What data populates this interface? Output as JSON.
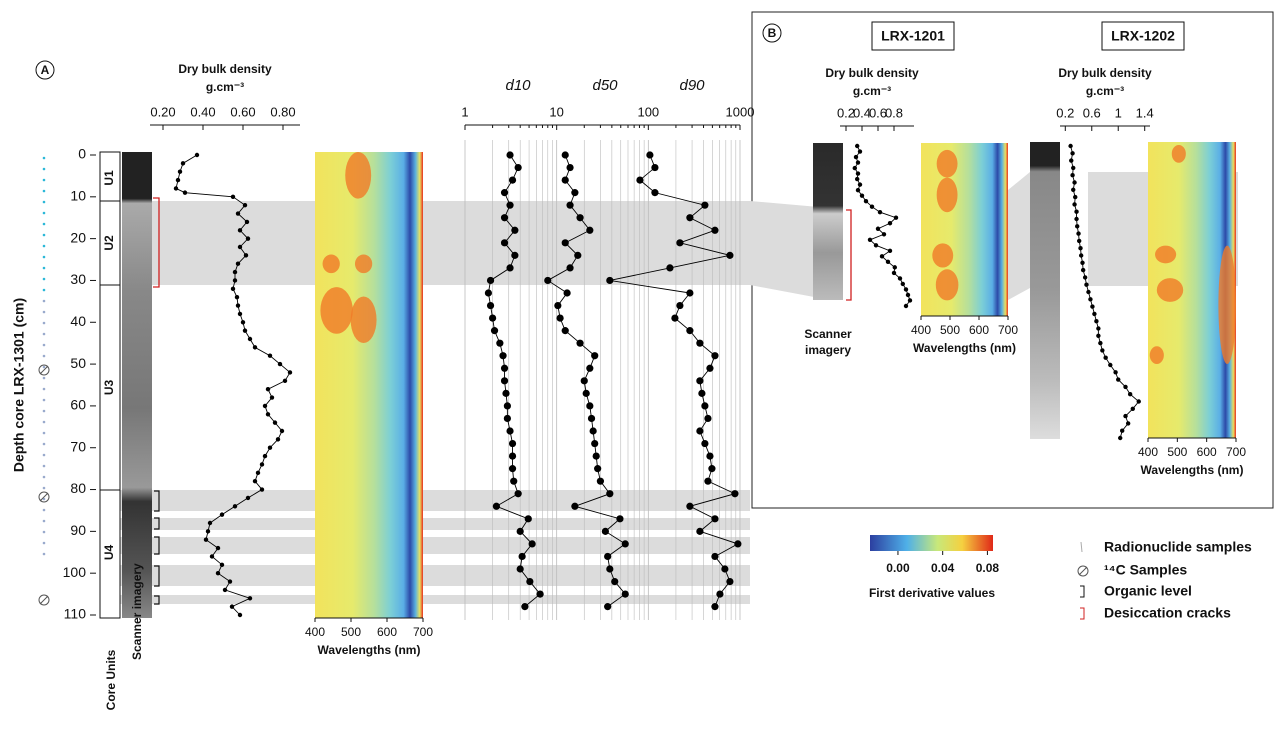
{
  "figure": {
    "panel_a": "A",
    "panel_b": "B",
    "core_1201": "LRX-1201",
    "core_1202": "LRX-1202",
    "core_units": "Core Units",
    "scanner_imagery": "Scanner imagery",
    "units": [
      "U1",
      "U2",
      "U3",
      "U4"
    ],
    "inset_scanner": [
      "Scanner",
      "imagery"
    ]
  },
  "colorbar": {
    "label": "First derivative values",
    "range": [
      -0.025,
      0.085
    ],
    "ticks": [
      {
        "value": 0,
        "label": "0.00"
      },
      {
        "value": 0.04,
        "label": "0.04"
      },
      {
        "value": 0.08,
        "label": "0.08"
      }
    ]
  },
  "legend": [
    "Radionuclide samples",
    "¹⁴C Samples",
    "Organic level",
    "Desiccation cracks"
  ],
  "chart_data": [
    {
      "type": "line",
      "title": "Dry bulk density",
      "subtitle": "g.cm⁻³",
      "y_label": "Depth core LRX-1301 (cm)",
      "color": "#000000",
      "xlim": [
        0.135,
        0.885
      ],
      "xticks": [
        {
          "value": 0.2,
          "label": "0.20"
        },
        {
          "value": 0.4,
          "label": "0.40"
        },
        {
          "value": 0.6,
          "label": "0.60"
        },
        {
          "value": 0.8,
          "label": "0.80"
        }
      ],
      "ylim": [
        0,
        110
      ],
      "yticks": [
        0,
        10,
        20,
        30,
        40,
        50,
        60,
        70,
        80,
        90,
        100,
        110
      ],
      "depth": [
        0,
        2,
        4,
        6,
        8,
        9,
        10,
        12,
        14,
        16,
        18,
        20,
        22,
        24,
        26,
        28,
        30,
        32,
        34,
        36,
        38,
        40,
        42,
        44,
        46,
        48,
        50,
        52,
        54,
        56,
        58,
        60,
        62,
        64,
        66,
        68,
        70,
        72,
        74,
        76,
        78,
        80,
        82,
        84,
        86,
        88,
        90,
        92,
        94,
        96,
        98,
        100,
        102,
        104,
        106,
        108,
        110
      ],
      "values": [
        0.37,
        0.3,
        0.285,
        0.275,
        0.265,
        0.31,
        0.55,
        0.61,
        0.575,
        0.62,
        0.585,
        0.625,
        0.585,
        0.615,
        0.575,
        0.56,
        0.56,
        0.55,
        0.57,
        0.575,
        0.585,
        0.6,
        0.61,
        0.635,
        0.66,
        0.735,
        0.785,
        0.835,
        0.81,
        0.725,
        0.745,
        0.71,
        0.725,
        0.76,
        0.795,
        0.775,
        0.735,
        0.71,
        0.695,
        0.675,
        0.66,
        0.695,
        0.625,
        0.56,
        0.495,
        0.435,
        0.425,
        0.415,
        0.475,
        0.445,
        0.495,
        0.475,
        0.535,
        0.51,
        0.635,
        0.545,
        0.585
      ]
    },
    {
      "type": "line",
      "log_x": true,
      "color": "#000000",
      "xlim": [
        1,
        1000
      ],
      "xticks": [
        1,
        10,
        100,
        1000
      ],
      "minor_xticks": [
        2,
        3,
        4,
        5,
        6,
        7,
        8,
        9,
        20,
        30,
        40,
        50,
        60,
        70,
        80,
        90,
        200,
        300,
        400,
        500,
        600,
        700,
        800,
        900
      ],
      "ylim": [
        0,
        110
      ],
      "depth": [
        0,
        3,
        6,
        9,
        12,
        15,
        18,
        21,
        24,
        27,
        30,
        33,
        36,
        39,
        42,
        45,
        48,
        51,
        54,
        57,
        60,
        63,
        66,
        69,
        72,
        75,
        78,
        81,
        84,
        87,
        90,
        93,
        96,
        99,
        102,
        105,
        108
      ],
      "series": [
        {
          "name": "d10",
          "values": [
            3.1,
            3.8,
            3.3,
            2.7,
            3.1,
            2.7,
            3.5,
            2.7,
            3.5,
            3.1,
            1.9,
            1.8,
            1.9,
            2.0,
            2.1,
            2.4,
            2.6,
            2.7,
            2.7,
            2.8,
            2.9,
            2.9,
            3.1,
            3.3,
            3.3,
            3.3,
            3.4,
            3.8,
            2.2,
            4.9,
            4.0,
            5.4,
            4.2,
            4.0,
            5.1,
            6.6,
            4.5
          ]
        },
        {
          "name": "d50",
          "values": [
            12.4,
            14,
            12.4,
            15.8,
            14,
            18,
            23,
            12.4,
            17,
            14,
            8.0,
            13,
            10.3,
            10.9,
            12.4,
            18,
            26,
            23,
            20,
            21,
            23,
            24,
            25,
            26,
            27,
            28,
            30,
            38,
            15.8,
            49,
            34,
            56,
            36,
            38,
            43,
            56,
            36
          ]
        },
        {
          "name": "d90",
          "values": [
            104,
            118,
            81,
            118,
            414,
            284,
            533,
            221,
            776,
            172,
            38,
            284,
            221,
            195,
            284,
            365,
            533,
            470,
            365,
            384,
            414,
            447,
            365,
            414,
            470,
            494,
            447,
            880,
            284,
            533,
            365,
            948,
            533,
            684,
            776,
            604,
            533
          ]
        }
      ]
    },
    {
      "type": "heatmap",
      "x_label": "Wavelengths (nm)",
      "xlim": [
        400,
        700
      ],
      "xticks": [
        400,
        500,
        600,
        700
      ]
    },
    {
      "type": "line",
      "title": "Dry bulk density",
      "subtitle": "g.cm⁻³",
      "color": "#000000",
      "xlim": [
        0.125,
        1.05
      ],
      "xticks": [
        0.2,
        0.4,
        0.6,
        0.8
      ],
      "values": [
        0.34,
        0.375,
        0.325,
        0.35,
        0.31,
        0.35,
        0.34,
        0.375,
        0.35,
        0.4,
        0.45,
        0.525,
        0.625,
        0.825,
        0.75,
        0.6,
        0.675,
        0.5,
        0.575,
        0.75,
        0.65,
        0.725,
        0.81,
        0.8,
        0.875,
        0.91,
        0.95,
        0.975,
        1.0,
        0.95
      ]
    },
    {
      "type": "heatmap",
      "x_label": "Wavelengths (nm)",
      "xlim": [
        400,
        700
      ],
      "xticks": [
        400,
        500,
        600,
        700
      ]
    },
    {
      "type": "line",
      "title": "Dry bulk density",
      "subtitle": "g.cm⁻³",
      "color": "#000000",
      "xlim": [
        0.12,
        1.48
      ],
      "xticks": [
        0.2,
        0.6,
        1,
        1.4
      ],
      "values": [
        0.28,
        0.31,
        0.29,
        0.32,
        0.31,
        0.34,
        0.32,
        0.35,
        0.34,
        0.37,
        0.37,
        0.38,
        0.4,
        0.41,
        0.43,
        0.44,
        0.46,
        0.47,
        0.5,
        0.52,
        0.55,
        0.58,
        0.61,
        0.64,
        0.67,
        0.7,
        0.7,
        0.73,
        0.76,
        0.81,
        0.88,
        0.96,
        1.0,
        1.11,
        1.18,
        1.31,
        1.22,
        1.11,
        1.15,
        1.06,
        1.03
      ]
    },
    {
      "type": "heatmap",
      "x_label": "Wavelengths (nm)",
      "xlim": [
        400,
        700
      ],
      "xticks": [
        400,
        500,
        600,
        700
      ]
    }
  ]
}
